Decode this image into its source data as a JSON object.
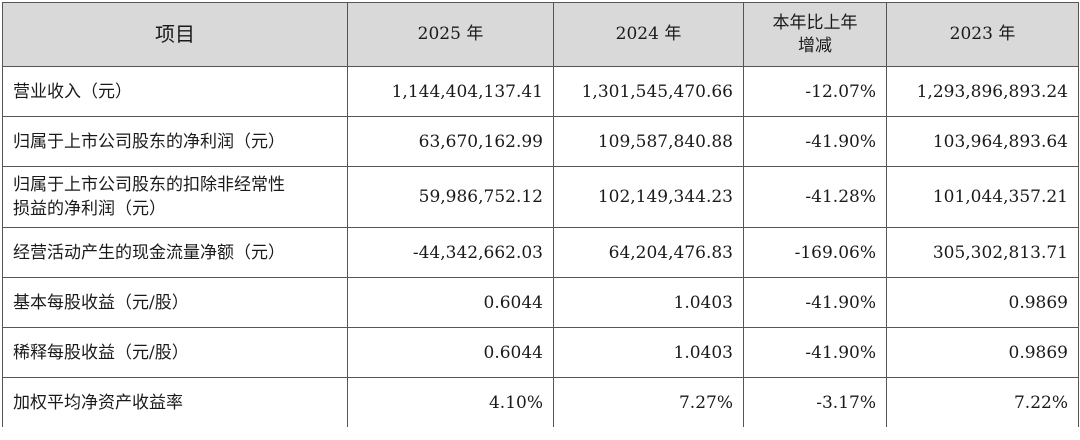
{
  "table": {
    "headers": [
      "项目",
      "2025 年",
      "2024 年",
      "本年比上年增减",
      "2023 年"
    ],
    "header_change_line1": "本年比上年",
    "header_change_line2": "增减",
    "rows": [
      {
        "label": "营业收入（元）",
        "y2025": "1,144,404,137.41",
        "y2024": "1,301,545,470.66",
        "change": "-12.07%",
        "y2023": "1,293,896,893.24"
      },
      {
        "label": "归属于上市公司股东的净利润（元）",
        "y2025": "63,670,162.99",
        "y2024": "109,587,840.88",
        "change": "-41.90%",
        "y2023": "103,964,893.64"
      },
      {
        "label_line1": "归属于上市公司股东的扣除非经常性",
        "label_line2": "损益的净利润（元）",
        "y2025": "59,986,752.12",
        "y2024": "102,149,344.23",
        "change": "-41.28%",
        "y2023": "101,044,357.21"
      },
      {
        "label": "经营活动产生的现金流量净额（元）",
        "y2025": "-44,342,662.03",
        "y2024": "64,204,476.83",
        "change": "-169.06%",
        "y2023": "305,302,813.71"
      },
      {
        "label": "基本每股收益（元/股）",
        "y2025": "0.6044",
        "y2024": "1.0403",
        "change": "-41.90%",
        "y2023": "0.9869"
      },
      {
        "label": "稀释每股收益（元/股）",
        "y2025": "0.6044",
        "y2024": "1.0403",
        "change": "-41.90%",
        "y2023": "0.9869"
      },
      {
        "label": "加权平均净资产收益率",
        "y2025": "4.10%",
        "y2024": "7.27%",
        "change": "-3.17%",
        "y2023": "7.22%"
      }
    ]
  }
}
